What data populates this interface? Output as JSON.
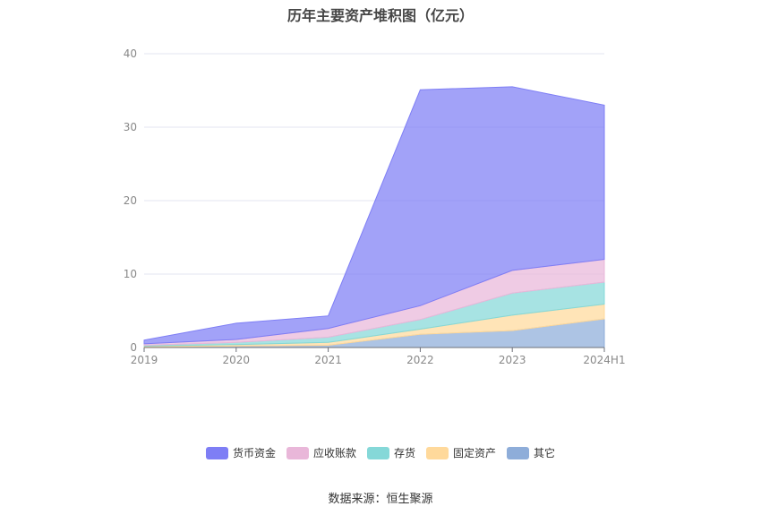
{
  "chart_data": {
    "type": "area",
    "stacked": true,
    "title": "历年主要资产堆积图（亿元）",
    "categories": [
      "2019",
      "2020",
      "2021",
      "2022",
      "2023",
      "2024H1"
    ],
    "ylim": [
      0,
      40
    ],
    "yticks": [
      0,
      10,
      20,
      30,
      40
    ],
    "grid": true,
    "legend_position": "bottom",
    "series": [
      {
        "name": "其它",
        "color": "#8eadd9",
        "values": [
          0.1,
          0.2,
          0.3,
          1.8,
          2.3,
          3.9
        ]
      },
      {
        "name": "固定资产",
        "color": "#ffd99b",
        "values": [
          0.1,
          0.2,
          0.4,
          0.7,
          2.1,
          2.0
        ]
      },
      {
        "name": "存货",
        "color": "#85d8d8",
        "values": [
          0.1,
          0.3,
          0.7,
          1.3,
          3.0,
          3.0
        ]
      },
      {
        "name": "应收账款",
        "color": "#e9b7d9",
        "values": [
          0.2,
          0.4,
          1.2,
          1.9,
          3.1,
          3.1
        ]
      },
      {
        "name": "货币资金",
        "color": "#7e7ef5",
        "values": [
          0.5,
          2.2,
          1.7,
          29.4,
          25.0,
          21.0
        ]
      }
    ],
    "legend_order": [
      "货币资金",
      "应收账款",
      "存货",
      "固定资产",
      "其它"
    ]
  },
  "source_note": "数据来源：恒生聚源"
}
